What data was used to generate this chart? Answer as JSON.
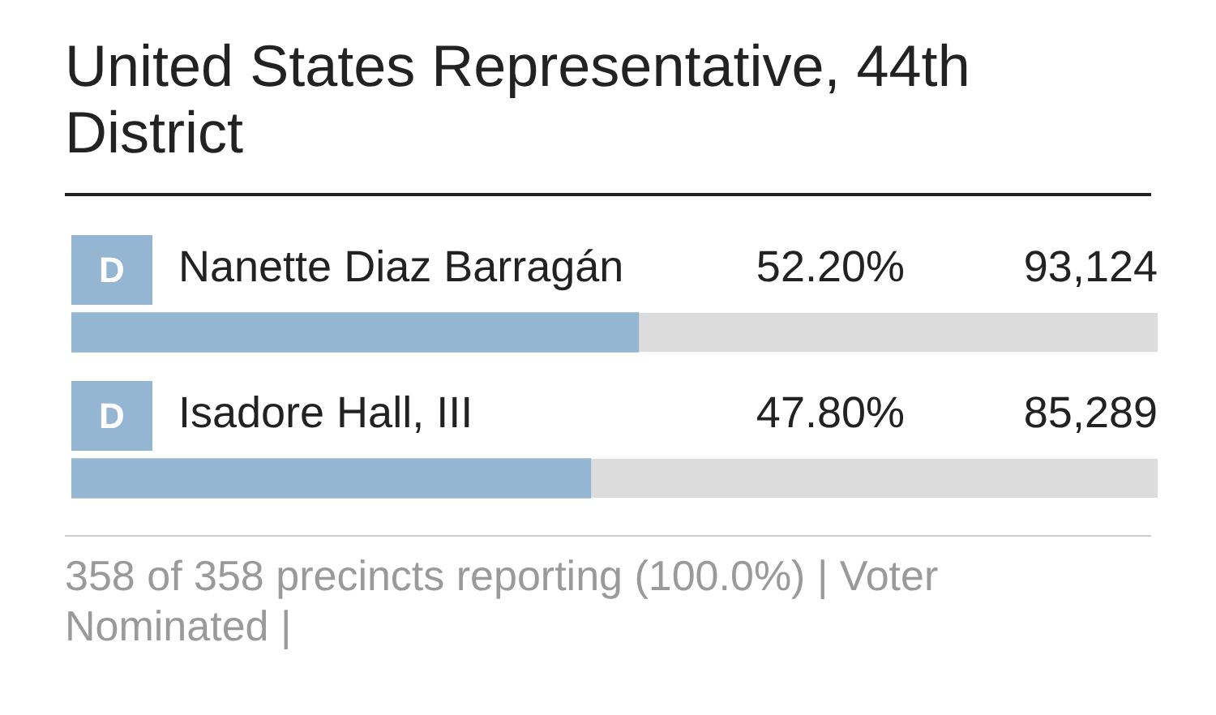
{
  "chart_data": {
    "type": "bar",
    "orientation": "horizontal",
    "title": "United States Representative, 44th District",
    "categories": [
      "Nanette Diaz Barragán",
      "Isadore Hall, III"
    ],
    "values": [
      52.2,
      47.8
    ],
    "value_labels": [
      "52.20%",
      "47.80%"
    ],
    "color": "#94b6d2",
    "xlim": [
      0,
      100
    ],
    "tick_labels": false,
    "annotations": [
      "D",
      "93,124",
      "D",
      "85,289",
      "358 of 358 precincts reporting (100.0%) | Voter Nominated |"
    ]
  }
}
